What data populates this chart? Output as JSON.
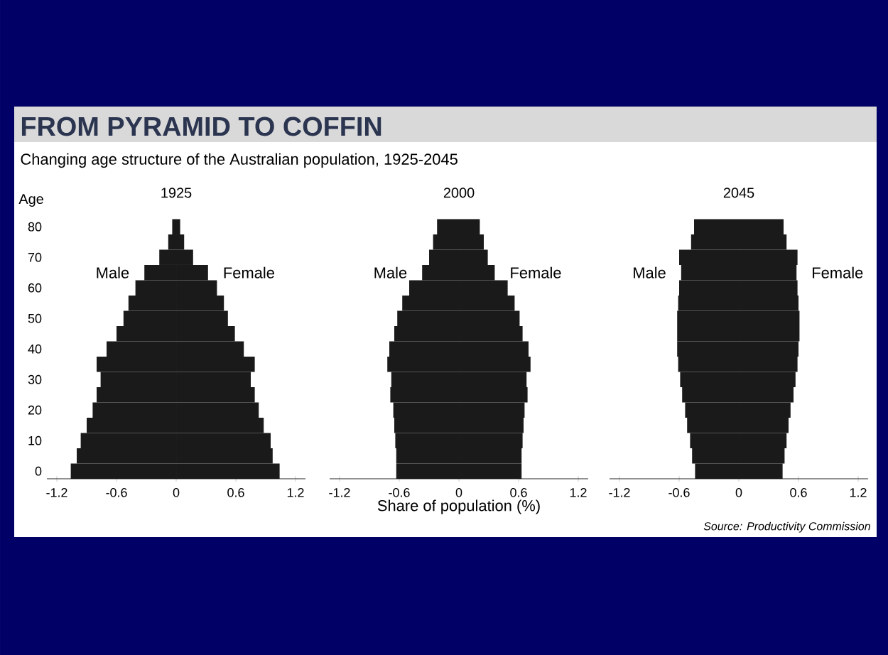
{
  "chart_data": [
    {
      "type": "bar",
      "orientation": "horizontal",
      "stacked": true,
      "title": "1925",
      "ylabel": "Age",
      "annotations": [
        "FROM PYRAMID TO COFFIN",
        "Changing age structure of the Australian population, 1925-2045"
      ],
      "categories": [
        "80",
        null,
        "70",
        null,
        "60",
        null,
        "50",
        null,
        "40",
        null,
        "30",
        null,
        "20",
        null,
        "10",
        null,
        "0"
      ],
      "series": [
        {
          "name": "Male",
          "color": "#1a1a1a",
          "values": [
            -0.04,
            -0.08,
            -0.17,
            -0.32,
            -0.41,
            -0.48,
            -0.53,
            -0.6,
            -0.7,
            -0.8,
            -0.76,
            -0.8,
            -0.84,
            -0.9,
            -0.96,
            -1.0,
            -1.06
          ]
        },
        {
          "name": "Female",
          "color": "#1a1a1a",
          "values": [
            0.04,
            0.08,
            0.17,
            0.32,
            0.41,
            0.48,
            0.52,
            0.59,
            0.68,
            0.79,
            0.75,
            0.79,
            0.83,
            0.88,
            0.95,
            0.97,
            1.04
          ]
        }
      ],
      "xlim": [
        -1.3,
        1.3
      ],
      "xticks": [
        -1.2,
        -0.6,
        0,
        0.6,
        1.2
      ]
    },
    {
      "type": "bar",
      "orientation": "horizontal",
      "stacked": true,
      "title": "2000",
      "xlabel": "Share of population (%)",
      "categories": [
        "80",
        null,
        "70",
        null,
        "60",
        null,
        "50",
        null,
        "40",
        null,
        "30",
        null,
        "20",
        null,
        "10",
        null,
        "0"
      ],
      "series": [
        {
          "name": "Male",
          "color": "#1a1a1a",
          "values": [
            -0.22,
            -0.26,
            -0.3,
            -0.37,
            -0.5,
            -0.57,
            -0.62,
            -0.65,
            -0.7,
            -0.72,
            -0.68,
            -0.69,
            -0.66,
            -0.65,
            -0.64,
            -0.63,
            -0.63
          ]
        },
        {
          "name": "Female",
          "color": "#1a1a1a",
          "values": [
            0.21,
            0.25,
            0.29,
            0.36,
            0.49,
            0.56,
            0.61,
            0.64,
            0.7,
            0.72,
            0.68,
            0.69,
            0.66,
            0.65,
            0.64,
            0.63,
            0.63
          ]
        }
      ],
      "xlim": [
        -1.3,
        1.3
      ],
      "xticks": [
        -1.2,
        -0.6,
        0,
        0.6,
        1.2
      ],
      "tick_labels": "x"
    },
    {
      "type": "bar",
      "orientation": "horizontal",
      "stacked": true,
      "title": "2045",
      "annotations": [
        "Source: Productivity Commission"
      ],
      "categories": [
        "80",
        null,
        "70",
        null,
        "60",
        null,
        "50",
        null,
        "40",
        null,
        "30",
        null,
        "20",
        null,
        "10",
        null,
        "0"
      ],
      "series": [
        {
          "name": "Male",
          "color": "#1a1a1a",
          "values": [
            -0.45,
            -0.48,
            -0.6,
            -0.58,
            -0.6,
            -0.61,
            -0.62,
            -0.62,
            -0.62,
            -0.61,
            -0.59,
            -0.57,
            -0.54,
            -0.52,
            -0.49,
            -0.47,
            -0.44
          ]
        },
        {
          "name": "Female",
          "color": "#1a1a1a",
          "values": [
            0.45,
            0.48,
            0.59,
            0.58,
            0.59,
            0.6,
            0.61,
            0.61,
            0.6,
            0.59,
            0.57,
            0.55,
            0.52,
            0.5,
            0.48,
            0.46,
            0.44
          ]
        }
      ],
      "xlim": [
        -1.3,
        1.3
      ],
      "xticks": [
        -1.2,
        -0.6,
        0,
        0.6,
        1.2
      ],
      "tick_labels": "x"
    }
  ]
}
